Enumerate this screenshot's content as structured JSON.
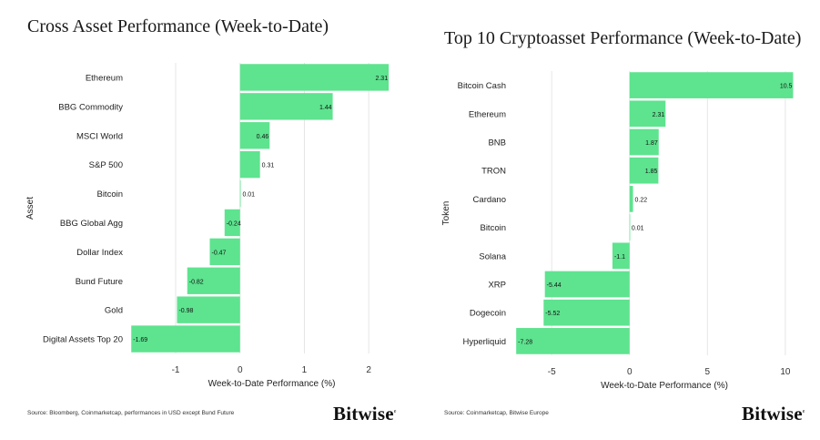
{
  "chart_data": [
    {
      "type": "bar",
      "orientation": "horizontal",
      "title": "Cross Asset Performance (Week-to-Date)",
      "xlabel": "Week-to-Date Performance (%)",
      "ylabel": "Asset",
      "categories": [
        "Ethereum",
        "BBG Commodity",
        "MSCI World",
        "S&P 500",
        "Bitcoin",
        "BBG Global Agg",
        "Dollar Index",
        "Bund Future",
        "Gold",
        "Digital Assets Top 20"
      ],
      "values": [
        2.31,
        1.44,
        0.46,
        0.31,
        0.01,
        -0.24,
        -0.47,
        -0.82,
        -0.98,
        -1.69
      ],
      "value_labels": [
        "2.31",
        "1.44",
        "0.46",
        "0.31",
        "0.01",
        "-0.24",
        "-0.47",
        "-0.82",
        "-0.98",
        "-1.69"
      ],
      "xlim": [
        -1.75,
        2.45
      ],
      "xticks": [
        -1,
        0,
        1,
        2
      ],
      "xtick_labels": [
        "-1",
        "0",
        "1",
        "2"
      ],
      "grid": true,
      "bar_color": "#5ee38f",
      "source": "Source: Bloomberg, Coinmarketcap, performances in USD except Bund Future"
    },
    {
      "type": "bar",
      "orientation": "horizontal",
      "title": "Top 10 Cryptoasset Performance (Week-to-Date)",
      "xlabel": "Week-to-Date Performance (%)",
      "ylabel": "Token",
      "categories": [
        "Bitcoin Cash",
        "Ethereum",
        "BNB",
        "TRON",
        "Cardano",
        "Bitcoin",
        "Solana",
        "XRP",
        "Dogecoin",
        "Hyperliquid"
      ],
      "values": [
        10.5,
        2.31,
        1.87,
        1.85,
        0.22,
        0.01,
        -1.1,
        -5.44,
        -5.52,
        -7.28
      ],
      "value_labels": [
        "10.5",
        "2.31",
        "1.87",
        "1.85",
        "0.22",
        "0.01",
        "-1.1",
        "-5.44",
        "-5.52",
        "-7.28"
      ],
      "xlim": [
        -7.7,
        11.0
      ],
      "xticks": [
        -5,
        0,
        5,
        10
      ],
      "xtick_labels": [
        "-5",
        "0",
        "5",
        "10"
      ],
      "grid": true,
      "bar_color": "#5ee38f",
      "source": "Source: Coinmarketcap, Bitwise Europe"
    }
  ],
  "branding": {
    "logo_text": "Bitwise",
    "logo_mark": "e"
  },
  "colors": {
    "bar": "#5ee38f",
    "grid": "#e6e6e6",
    "text": "#222222"
  }
}
